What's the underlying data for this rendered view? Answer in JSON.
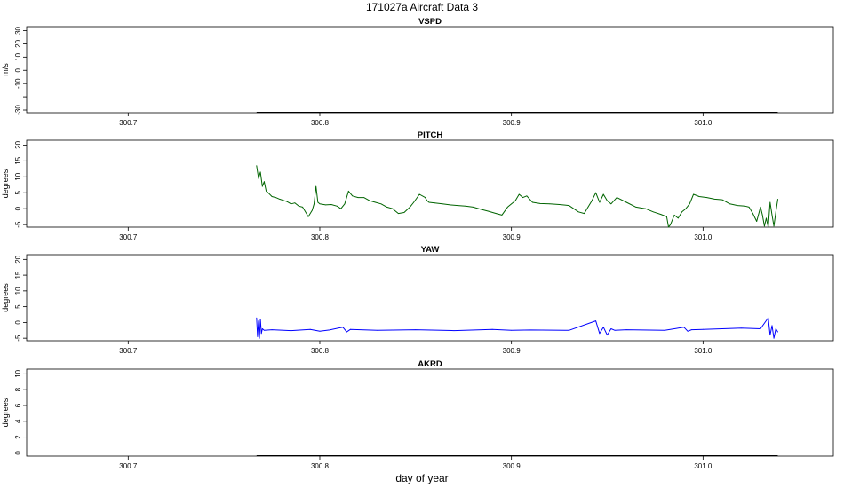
{
  "figure": {
    "title": "171027a   Aircraft Data 3",
    "xlabel": "day of year"
  },
  "chart_data": [
    {
      "type": "line",
      "title": "VSPD",
      "ylabel": "m/s",
      "xlim": [
        300.647,
        301.068
      ],
      "ylim": [
        -32,
        33
      ],
      "xticks": [
        300.7,
        300.8,
        300.9,
        301.0
      ],
      "xtick_labels": [
        "300.7",
        "300.8",
        "300.9",
        "301.0"
      ],
      "yticks": [
        -30,
        -20,
        -10,
        0,
        10,
        20,
        30
      ],
      "ytick_labels": [
        "-30",
        "",
        "-10",
        "0",
        "10",
        "20",
        "30"
      ],
      "series": []
    },
    {
      "type": "line",
      "title": "PITCH",
      "ylabel": "degrees",
      "xlim": [
        300.647,
        301.068
      ],
      "ylim": [
        -5.8,
        21.5
      ],
      "xticks": [
        300.7,
        300.8,
        300.9,
        301.0
      ],
      "xtick_labels": [
        "300.7",
        "300.8",
        "300.9",
        "301.0"
      ],
      "yticks": [
        -5,
        0,
        5,
        10,
        15,
        20
      ],
      "ytick_labels": [
        "-5",
        "0",
        "5",
        "10",
        "15",
        "20"
      ],
      "series": [
        {
          "color": "#006400",
          "x": [
            300.767,
            300.768,
            300.769,
            300.77,
            300.771,
            300.772,
            300.773,
            300.775,
            300.777,
            300.779,
            300.781,
            300.783,
            300.785,
            300.787,
            300.789,
            300.791,
            300.793,
            300.794,
            300.796,
            300.797,
            300.798,
            300.799,
            300.8,
            300.803,
            300.806,
            300.809,
            300.811,
            300.813,
            300.815,
            300.817,
            300.82,
            300.823,
            300.826,
            300.829,
            300.832,
            300.835,
            300.838,
            300.841,
            300.844,
            300.847,
            300.849,
            300.852,
            300.855,
            300.856,
            300.857,
            300.86,
            300.864,
            300.868,
            300.872,
            300.876,
            300.88,
            300.884,
            300.888,
            300.892,
            300.895,
            300.898,
            300.9,
            300.902,
            300.904,
            300.906,
            300.908,
            300.911,
            300.915,
            300.92,
            300.925,
            300.93,
            300.935,
            300.938,
            300.94,
            300.942,
            300.944,
            300.946,
            300.948,
            300.95,
            300.952,
            300.955,
            300.96,
            300.965,
            300.97,
            300.974,
            300.978,
            300.981,
            300.982,
            300.983,
            300.985,
            300.987,
            300.989,
            300.991,
            300.993,
            300.995,
            300.998,
            301.002,
            301.006,
            301.01,
            301.014,
            301.018,
            301.022,
            301.024,
            301.026,
            301.028,
            301.03,
            301.031,
            301.032,
            301.033,
            301.034,
            301.035,
            301.036,
            301.037,
            301.038,
            301.039
          ],
          "y": [
            13.5,
            9.5,
            11.5,
            7.0,
            8.5,
            5.5,
            5.0,
            3.8,
            3.5,
            3.0,
            2.6,
            2.2,
            1.5,
            1.8,
            0.8,
            0.5,
            -1.5,
            -2.5,
            -0.5,
            1.5,
            7.0,
            2.0,
            1.5,
            1.2,
            1.3,
            0.8,
            0.0,
            1.5,
            5.5,
            4.0,
            3.5,
            3.5,
            2.5,
            2.0,
            1.5,
            0.5,
            0.0,
            -1.5,
            -1.2,
            0.5,
            2.0,
            4.5,
            3.5,
            2.5,
            2.0,
            1.8,
            1.5,
            1.2,
            1.0,
            0.8,
            0.5,
            -0.2,
            -0.8,
            -1.5,
            -2.0,
            0.5,
            1.5,
            2.5,
            4.5,
            3.5,
            4.0,
            2.0,
            1.6,
            1.5,
            1.3,
            1.0,
            -1.0,
            -1.5,
            0.5,
            2.5,
            5.0,
            2.0,
            4.5,
            2.5,
            1.5,
            3.5,
            2.0,
            0.5,
            0.0,
            -1.0,
            -1.8,
            -2.5,
            -6.0,
            -5.0,
            -2.0,
            -3.0,
            -1.0,
            0.0,
            1.5,
            4.5,
            3.8,
            3.5,
            3.0,
            2.8,
            1.5,
            1.0,
            0.8,
            0.5,
            -1.5,
            -4.0,
            0.5,
            -2.0,
            -5.5,
            -3.0,
            -5.8,
            2.0,
            -2.0,
            -5.5,
            -1.0,
            3.0
          ]
        }
      ]
    },
    {
      "type": "line",
      "title": "YAW",
      "ylabel": "degrees",
      "xlim": [
        300.647,
        301.068
      ],
      "ylim": [
        -5.8,
        21.5
      ],
      "xticks": [
        300.7,
        300.8,
        300.9,
        301.0
      ],
      "xtick_labels": [
        "300.7",
        "300.8",
        "300.9",
        "301.0"
      ],
      "yticks": [
        -5,
        0,
        5,
        10,
        15,
        20
      ],
      "ytick_labels": [
        "-5",
        "0",
        "5",
        "10",
        "15",
        "20"
      ],
      "series": [
        {
          "color": "#0000ff",
          "x": [
            300.767,
            300.7675,
            300.768,
            300.7685,
            300.769,
            300.7695,
            300.77,
            300.771,
            300.775,
            300.785,
            300.795,
            300.8,
            300.805,
            300.812,
            300.814,
            300.816,
            300.83,
            300.85,
            300.87,
            300.89,
            300.9,
            300.91,
            300.93,
            300.944,
            300.946,
            300.948,
            300.95,
            300.952,
            300.954,
            300.96,
            300.98,
            300.99,
            300.992,
            300.994,
            301.0,
            301.01,
            301.02,
            301.03,
            301.034,
            301.035,
            301.036,
            301.037,
            301.038,
            301.039
          ],
          "y": [
            1.5,
            -4.5,
            0.5,
            -5.0,
            1.0,
            -3.5,
            -2.0,
            -2.5,
            -2.3,
            -2.6,
            -2.2,
            -2.8,
            -2.4,
            -1.5,
            -3.0,
            -2.2,
            -2.5,
            -2.3,
            -2.6,
            -2.2,
            -2.5,
            -2.4,
            -2.5,
            0.5,
            -3.5,
            -1.5,
            -4.0,
            -2.0,
            -2.5,
            -2.3,
            -2.5,
            -1.5,
            -2.8,
            -2.3,
            -2.2,
            -2.0,
            -1.8,
            -2.0,
            1.5,
            -4.0,
            -1.0,
            -5.0,
            -2.0,
            -3.0
          ]
        }
      ]
    },
    {
      "type": "line",
      "title": "AKRD",
      "ylabel": "degrees",
      "xlim": [
        300.647,
        301.068
      ],
      "ylim": [
        -0.4,
        10.6
      ],
      "xticks": [
        300.7,
        300.8,
        300.9,
        301.0
      ],
      "xtick_labels": [
        "300.7",
        "300.8",
        "300.9",
        "301.0"
      ],
      "yticks": [
        0,
        2,
        4,
        6,
        8,
        10
      ],
      "ytick_labels": [
        "0",
        "2",
        "4",
        "6",
        "8",
        "10"
      ],
      "series": []
    }
  ]
}
